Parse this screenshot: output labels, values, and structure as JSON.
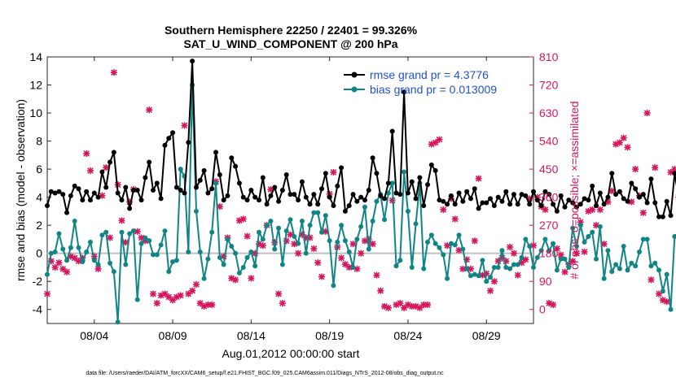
{
  "chart_data": {
    "type": "line",
    "title": [
      "Southern Hemisphere 22250 / 22401 = 99.326%",
      "SAT_U_WIND_COMPONENT @ 200 hPa"
    ],
    "xlabel": "Aug.01,2012 00:00:00 start",
    "ylabel_left": "rmse and bias (model - observation)",
    "ylabel_right": "# of obs: o=possible; ×=assimilated",
    "footer": "data file: /Users/raeder/DAI/ATM_forcXX/CAM6_setup/f.e21.FHIST_BGC.f09_025.CAM6assim.011/Diags_NTrS_2012-08/obs_diag_output.nc",
    "xlim": [
      1,
      32
    ],
    "ylim_left": [
      -5,
      14
    ],
    "ylim_right": [
      -45,
      810
    ],
    "x_ticks": [
      4,
      9,
      14,
      19,
      24,
      29
    ],
    "x_tick_labels": [
      "08/04",
      "08/09",
      "08/14",
      "08/19",
      "08/24",
      "08/29"
    ],
    "y_ticks_left": [
      -4,
      -2,
      0,
      2,
      4,
      6,
      8,
      10,
      12,
      14
    ],
    "y_ticks_right": [
      0,
      90,
      180,
      270,
      360,
      450,
      540,
      630,
      720,
      810
    ],
    "zero_line": 0,
    "legend_position": "top-right",
    "x_step": 0.25,
    "series": [
      {
        "name": "rmse grand pr = 4.3776",
        "color": "#000000",
        "axis": "left",
        "values": [
          3.4,
          4.4,
          4.3,
          4.4,
          4.2,
          2.9,
          4.1,
          4.8,
          4.6,
          3.8,
          4.4,
          3.8,
          4.3,
          4.0,
          5.8,
          4.7,
          6.5,
          7.2,
          4.3,
          3.8,
          4.7,
          3.2,
          4.5,
          4.5,
          3.8,
          5.4,
          6.5,
          4.5,
          5.0,
          3.9,
          7.7,
          8.2,
          8.6,
          4.7,
          4.5,
          4.3,
          7.9,
          13.7,
          4.7,
          5.2,
          5.9,
          4.3,
          4.6,
          7.2,
          5.6,
          3.8,
          4.1,
          6.8,
          6.2,
          5.0,
          4.0,
          3.8,
          4.5,
          4.0,
          3.8,
          5.4,
          3.5,
          4.1,
          4.7,
          3.7,
          4.5,
          5.6,
          4.2,
          4.2,
          3.8,
          5.1,
          4.0,
          3.5,
          4.2,
          3.5,
          4.6,
          5.7,
          4.0,
          3.4,
          4.8,
          6.1,
          3.0,
          3.4,
          4.2,
          3.7,
          4.0,
          3.8,
          4.5,
          6.8,
          5.7,
          4.1,
          3.9,
          5.0,
          8.7,
          4.3,
          4.2,
          11.5,
          4.3,
          5.1,
          3.9,
          5.4,
          3.4,
          4.9,
          6.3,
          5.9,
          3.8,
          3.7,
          3.5,
          4.1,
          3.5,
          4.3,
          3.7,
          4.4,
          3.9,
          4.6,
          3.2,
          3.6,
          3.6,
          3.9,
          3.4,
          4.0,
          3.7,
          4.4,
          3.5,
          4.2,
          3.5,
          4.2,
          4.1,
          3.5,
          4.4,
          3.8,
          3.4,
          4.4,
          4.2,
          3.5,
          3.0,
          4.1,
          3.3,
          3.8,
          3.6,
          3.3,
          3.5,
          3.9,
          3.8,
          4.8,
          3.4,
          4.3,
          3.5,
          4.0,
          5.7,
          4.2,
          4.4,
          3.9,
          3.7,
          5.0,
          4.6,
          4.0,
          4.2,
          3.6,
          5.3,
          3.6,
          2.6,
          2.6,
          3.7,
          2.7,
          5.7,
          4.0,
          3.7,
          3.5,
          3.0,
          4.6,
          3.5,
          4.3,
          3.5,
          4.6,
          3.8,
          4.4,
          3.9,
          3.9,
          4.7,
          4.0,
          4.8,
          4.2,
          4.6,
          3.4,
          4.2,
          4.7,
          3.9,
          3.4
        ]
      },
      {
        "name": "bias grand pr = 0.013009",
        "color": "#118585",
        "axis": "left",
        "values": [
          -1.5,
          0.0,
          0.1,
          1.4,
          0.3,
          -0.5,
          0.4,
          2.3,
          0.4,
          -0.6,
          0.1,
          0.8,
          -0.5,
          -0.8,
          1.3,
          1.5,
          -0.7,
          -1.3,
          -4.9,
          1.5,
          -0.8,
          1.4,
          1.6,
          -3.3,
          0.7,
          1.1,
          0.9,
          -0.1,
          -0.1,
          0.6,
          1.6,
          -1.3,
          -0.6,
          -0.5,
          6.0,
          5.5,
          0.1,
          12.0,
          3.0,
          0.1,
          -1.8,
          -0.4,
          1.5,
          5.0,
          -0.3,
          -0.8,
          1.0,
          0.5,
          0.0,
          -1.4,
          -1.0,
          -0.3,
          0.1,
          -0.9,
          1.5,
          1.0,
          2.0,
          2.3,
          0.3,
          1.8,
          -0.8,
          1.6,
          2.4,
          1.2,
          0.7,
          2.3,
          0.0,
          2.0,
          2.9,
          2.9,
          1.5,
          2.7,
          0.9,
          -2.3,
          0.8,
          2.0,
          0.9,
          0.1,
          -1.0,
          1.0,
          1.9,
          3.3,
          0.3,
          2.3,
          3.7,
          4.2,
          2.4,
          4.3,
          5.0,
          -0.9,
          -0.5,
          5.8,
          3.0,
          -1.0,
          2.1,
          5.0,
          -1.1,
          0.8,
          1.3,
          0.7,
          0.4,
          -0.1,
          -1.8,
          0.7,
          0.6,
          1.3,
          0.3,
          -1.1,
          -1.6,
          -1.5,
          -1.6,
          -0.5,
          -2.0,
          -1.7,
          -1.0,
          -1.0,
          0.2,
          -1.0,
          -1.1,
          -0.8,
          -0.8,
          -0.3,
          1.0,
          0.5,
          -1.0,
          -0.3,
          0.2,
          1.0,
          0.2,
          0.7,
          -1.2,
          -0.4,
          -0.4,
          -1.0,
          1.8,
          0.5,
          2.0,
          0.8,
          1.2,
          1.5,
          -0.4,
          1.9,
          -1.8,
          0.2,
          -1.3,
          -0.8,
          -1.1,
          0.5,
          -1.2,
          -0.7,
          -0.9,
          0.1,
          1.0,
          1.0,
          -0.9,
          -0.7,
          -1.2,
          -2.7,
          -1.5,
          -4.0,
          1.2,
          1.5,
          -0.1,
          -1.5,
          -0.5,
          -2.1,
          1.6,
          -0.1,
          -1.4,
          1.3,
          -1.2,
          0.7,
          1.0,
          0.3,
          0.3,
          1.2,
          0.4,
          -0.3,
          -0.9,
          -1.8,
          -1.0,
          -0.4,
          -0.5
        ]
      },
      {
        "name": "possible",
        "color": "#d6155c",
        "axis": "right",
        "marker": "o",
        "values": []
      },
      {
        "name": "assimilated",
        "color": "#d6155c",
        "axis": "right",
        "marker": "x",
        "values": [
          50,
          155,
          135,
          150,
          130,
          120,
          170,
          165,
          155,
          165,
          500,
          445,
          170,
          130,
          365,
          455,
          230,
          760,
          400,
          285,
          215,
          345,
          385,
          250,
          230,
          220,
          640,
          50,
          20,
          45,
          50,
          40,
          30,
          40,
          45,
          590,
          50,
          60,
          80,
          20,
          10,
          15,
          15,
          410,
          330,
          170,
          230,
          100,
          95,
          285,
          290,
          235,
          100,
          180,
          210,
          205,
          270,
          385,
          215,
          50,
          20,
          220,
          240,
          210,
          180,
          240,
          230,
          230,
          195,
          150,
          105,
          250,
          370,
          440,
          200,
          165,
          145,
          135,
          210,
          130,
          180,
          220,
          225,
          210,
          110,
          60,
          10,
          5,
          350,
          15,
          20,
          5,
          15,
          10,
          10,
          5,
          15,
          15,
          530,
          535,
          545,
          320,
          205,
          355,
          290,
          190,
          130,
          160,
          130,
          220,
          420,
          110,
          115,
          60,
          90,
          155,
          165,
          155,
          200,
          180,
          110,
          150,
          160,
          355,
          205,
          360,
          330,
          320,
          20,
          15,
          195,
          175,
          120,
          145,
          155,
          180,
          280,
          185,
          315,
          320,
          270,
          320,
          210,
          345,
          380,
          530,
          535,
          550,
          520,
          345,
          450,
          365,
          310,
          630,
          95,
          455,
          50,
          30,
          25,
          440,
          450,
          360,
          410,
          130,
          155,
          135,
          85,
          20,
          25,
          460,
          445,
          60,
          20,
          15,
          20,
          20,
          495,
          210,
          190,
          195,
          440,
          120,
          90,
          75,
          210,
          240
        ]
      }
    ]
  }
}
